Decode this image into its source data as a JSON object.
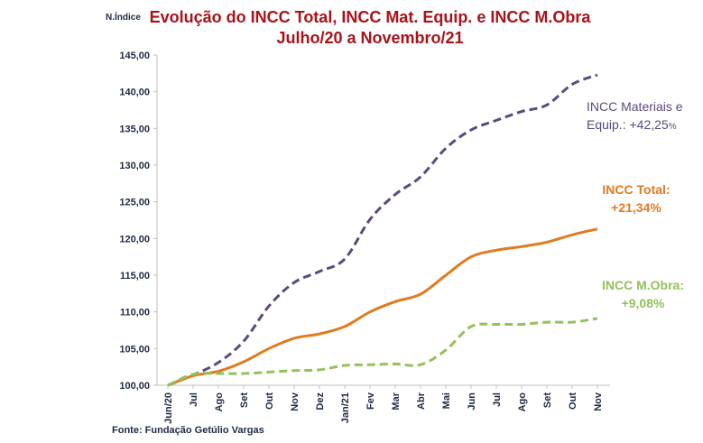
{
  "unit_label": "N.Índice",
  "source": "Fonte: Fundação Getúlio Vargas",
  "colors": {
    "title": "#a8131a",
    "materiais": "#5a4a7e",
    "total": "#e07b21",
    "obra": "#93c15a"
  },
  "annotations": {
    "materiais_line1": "INCC Materiais e",
    "materiais_line2": "Equip.:  +42,25",
    "materiais_pct": "%",
    "total_line1": "INCC Total:",
    "total_line2": "+21,34%",
    "obra_line1": "INCC M.Obra:",
    "obra_line2": "+9,08%"
  },
  "chart_data": {
    "type": "line",
    "title_line1": "Evolução do INCC Total, INCC Mat. Equip.  e INCC M.Obra",
    "title_line2": "Julho/20  a Novembro/21",
    "ylabel": "N.Índice",
    "xlabel": "",
    "ylim": [
      100,
      145
    ],
    "yticks": [
      "100,00",
      "105,00",
      "110,00",
      "115,00",
      "120,00",
      "125,00",
      "130,00",
      "135,00",
      "140,00",
      "145,00"
    ],
    "categories": [
      "Jun/20",
      "Jul",
      "Ago",
      "Set",
      "Out",
      "Nov",
      "Dez",
      "Jan/21",
      "Fev",
      "Mar",
      "Abr",
      "Mai",
      "Jun",
      "Jul",
      "Ago",
      "Set",
      "Out",
      "Nov"
    ],
    "series": [
      {
        "key": "materiais",
        "style": "dashed",
        "values": [
          100.0,
          101.4,
          103.1,
          106.0,
          110.8,
          114.0,
          115.5,
          117.2,
          122.6,
          126.0,
          128.4,
          132.3,
          134.8,
          136.1,
          137.3,
          138.2,
          141.0,
          142.3
        ]
      },
      {
        "key": "total",
        "style": "solid",
        "values": [
          100.0,
          101.3,
          101.9,
          103.2,
          105.0,
          106.4,
          107.0,
          108.0,
          110.0,
          111.4,
          112.4,
          115.0,
          117.5,
          118.4,
          118.9,
          119.5,
          120.5,
          121.3
        ]
      },
      {
        "key": "obra",
        "style": "dashed",
        "values": [
          100.0,
          101.5,
          101.6,
          101.6,
          101.8,
          102.0,
          102.1,
          102.7,
          102.8,
          102.9,
          102.8,
          104.8,
          108.0,
          108.3,
          108.3,
          108.6,
          108.6,
          109.1
        ]
      }
    ]
  }
}
